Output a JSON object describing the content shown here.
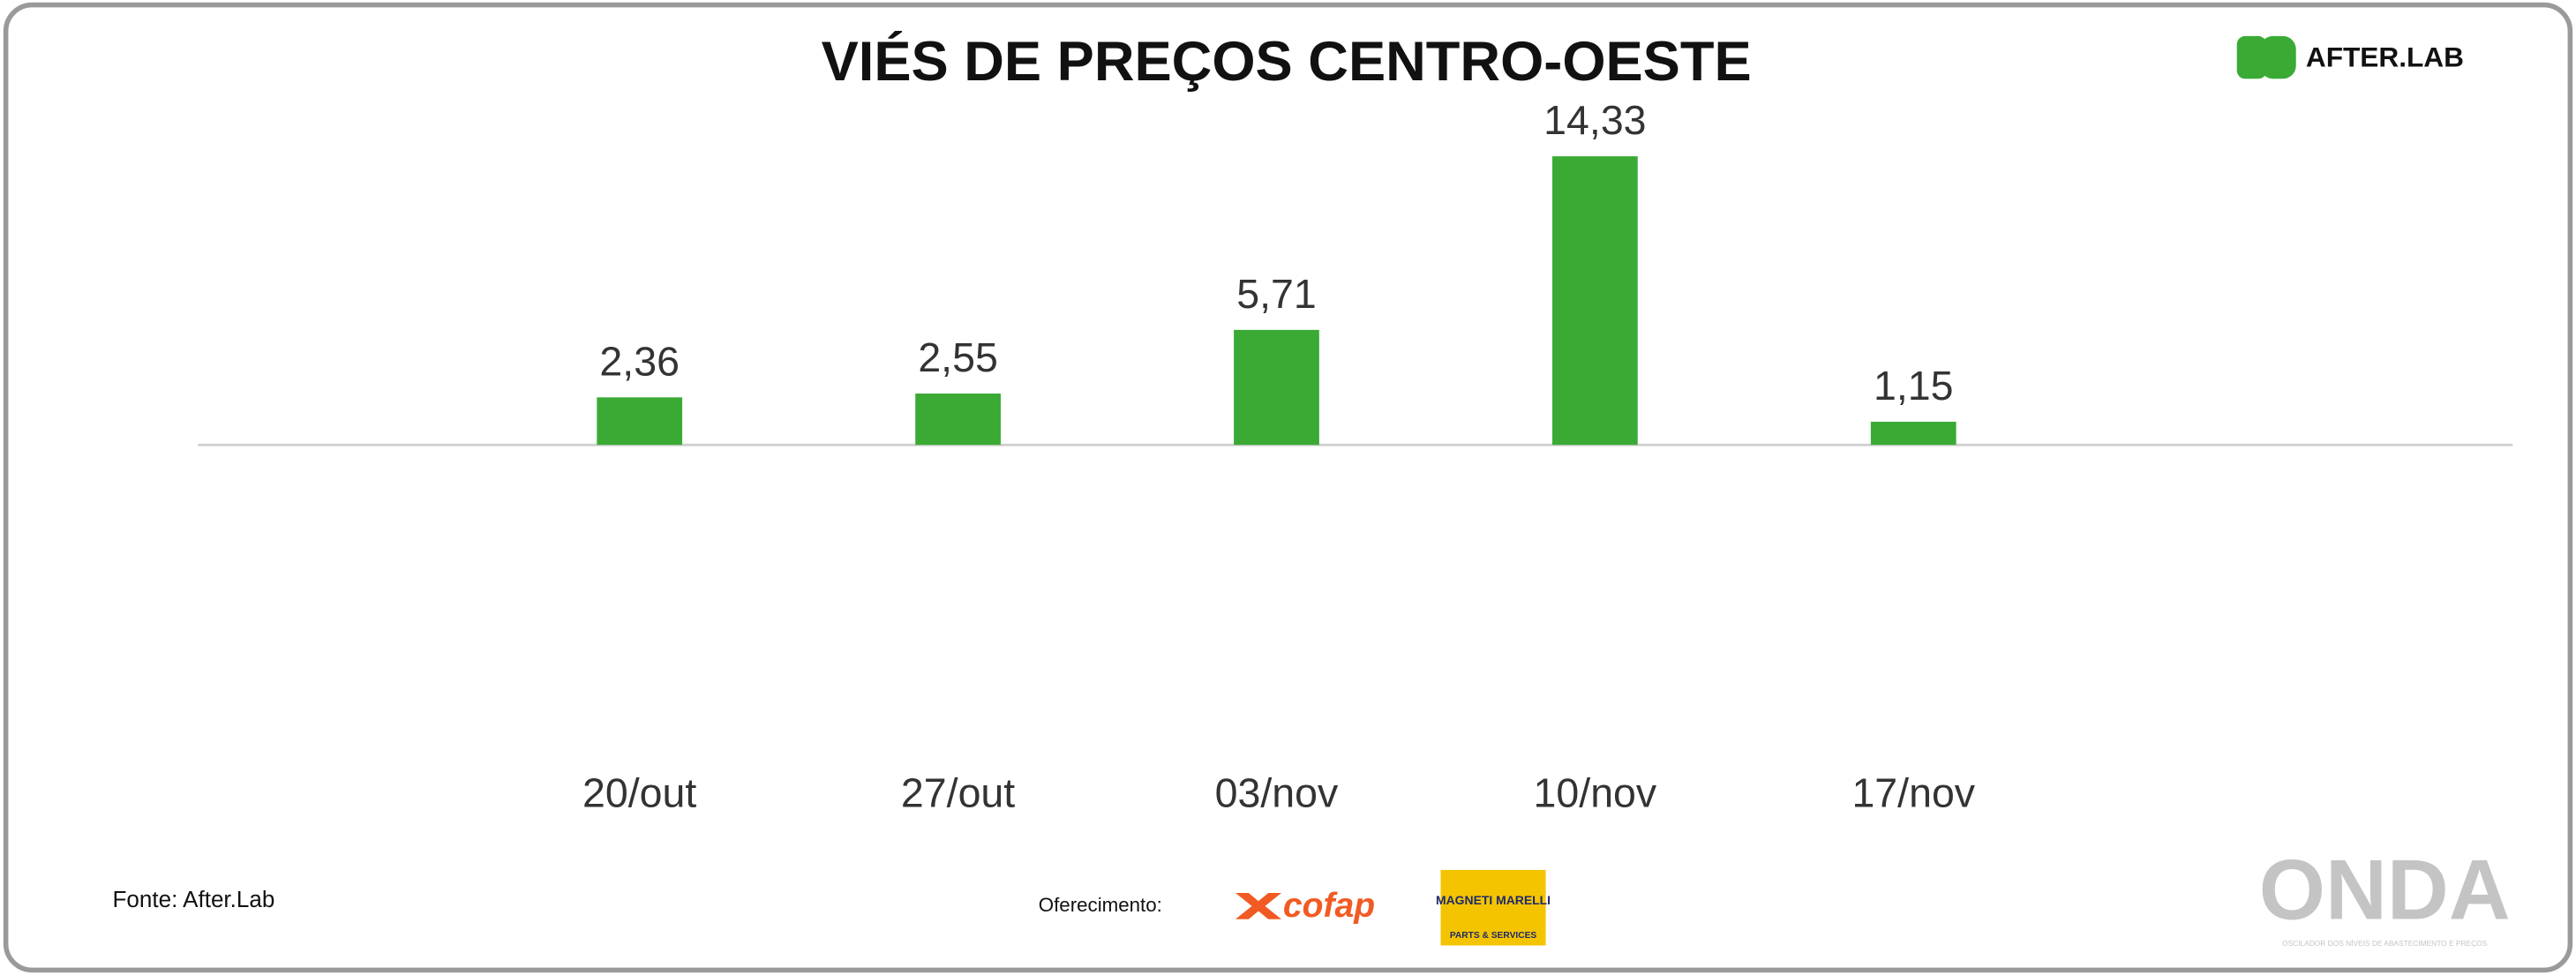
{
  "chart_data": {
    "type": "bar",
    "title": "VIÉS DE PREÇOS CENTRO-OESTE",
    "categories": [
      "20/out",
      "27/out",
      "03/nov",
      "10/nov",
      "17/nov"
    ],
    "values": [
      2.36,
      2.55,
      5.71,
      14.33,
      1.15
    ],
    "value_labels": [
      "2,36",
      "2,55",
      "5,71",
      "14,33",
      "1,15"
    ],
    "color": "#3aaa35",
    "ylim": [
      -15.4,
      17.2
    ],
    "grid": false
  },
  "source": "Fonte: After.Lab",
  "sponsor_label": "Oferecimento:",
  "logos": {
    "afterlab": "AFTER.LAB",
    "cofap": "cofap",
    "magneti_marelli": "MAGNETI MARELLI",
    "parts_services": "PARTS & SERVICES",
    "onda": "ONDA",
    "onda_tagline": "OSCILADOR DOS NÍVEIS DE ABASTECIMENTO E PREÇOS"
  }
}
